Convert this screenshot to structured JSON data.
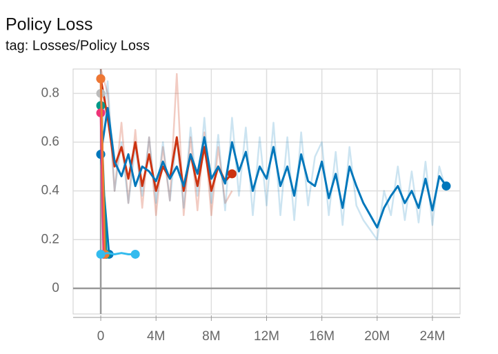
{
  "chart_data": {
    "type": "line",
    "title": "Policy Loss",
    "subtitle": "tag: Losses/Policy Loss",
    "xlim": [
      -2000000,
      26000000
    ],
    "xticks": [
      {
        "value": 0,
        "label": "0"
      },
      {
        "value": 4000000,
        "label": "4M"
      },
      {
        "value": 8000000,
        "label": "8M"
      },
      {
        "value": 12000000,
        "label": "12M"
      },
      {
        "value": 16000000,
        "label": "16M"
      },
      {
        "value": 20000000,
        "label": "20M"
      },
      {
        "value": 24000000,
        "label": "24M"
      }
    ],
    "ylim": [
      -0.105,
      0.9
    ],
    "yticks": [
      0,
      0.2,
      0.4,
      0.6,
      0.8
    ],
    "grid": true,
    "series": [
      {
        "color": "#cc3311",
        "opacity": 0.25,
        "x": [
          0,
          500000,
          1000000,
          1500000,
          2000000,
          2500000,
          3000000,
          3500000,
          4000000,
          4500000,
          5000000,
          5500000,
          6000000,
          6500000,
          7000000,
          7500000,
          8000000,
          8500000,
          9000000,
          9500000
        ],
        "values": [
          0.9,
          0.8,
          0.4,
          0.68,
          0.35,
          0.65,
          0.33,
          0.62,
          0.3,
          0.58,
          0.36,
          0.88,
          0.3,
          0.62,
          0.32,
          0.64,
          0.3,
          0.58,
          0.35,
          0.4
        ]
      },
      {
        "color": "#0077bb",
        "opacity": 0.2,
        "x": [
          0,
          500000,
          1000000,
          1500000,
          2000000,
          2500000,
          3000000,
          3500000,
          4000000,
          4500000,
          5000000,
          5500000,
          6000000,
          6500000,
          7000000,
          7500000,
          8000000,
          8500000,
          9000000,
          9500000,
          10000000,
          10500000,
          11000000,
          11500000,
          12000000,
          12500000,
          13000000,
          13500000,
          14000000,
          14500000,
          15000000,
          15500000,
          16000000,
          16500000,
          17000000,
          17500000,
          18000000,
          18500000,
          19000000,
          19500000,
          20000000,
          20500000,
          21000000,
          21500000,
          22000000,
          22500000,
          23000000,
          23500000,
          24000000,
          24500000,
          25000000
        ],
        "values": [
          0.6,
          0.85,
          0.4,
          0.6,
          0.35,
          0.58,
          0.38,
          0.62,
          0.35,
          0.6,
          0.36,
          0.62,
          0.33,
          0.66,
          0.38,
          0.7,
          0.35,
          0.63,
          0.32,
          0.7,
          0.38,
          0.66,
          0.3,
          0.62,
          0.34,
          0.68,
          0.3,
          0.62,
          0.28,
          0.64,
          0.34,
          0.54,
          0.6,
          0.3,
          0.56,
          0.26,
          0.58,
          0.34,
          0.28,
          0.24,
          0.2,
          0.4,
          0.3,
          0.5,
          0.28,
          0.48,
          0.27,
          0.52,
          0.26,
          0.5,
          0.4
        ]
      },
      {
        "color": "#cc3311",
        "opacity": 1,
        "x": [
          0,
          500000,
          1000000,
          1500000,
          2000000,
          2500000,
          3000000,
          3500000,
          4000000,
          4500000,
          5000000,
          5500000,
          6000000,
          6500000,
          7000000,
          7500000,
          8000000,
          8500000,
          9000000,
          9500000
        ],
        "values": [
          0.86,
          0.7,
          0.5,
          0.58,
          0.45,
          0.6,
          0.42,
          0.55,
          0.4,
          0.5,
          0.45,
          0.62,
          0.4,
          0.55,
          0.42,
          0.58,
          0.4,
          0.5,
          0.44,
          0.47
        ]
      },
      {
        "color": "#0077bb",
        "opacity": 1,
        "x": [
          0,
          500000,
          1000000,
          1500000,
          2000000,
          2500000,
          3000000,
          3500000,
          4000000,
          4500000,
          5000000,
          5500000,
          6000000,
          6500000,
          7000000,
          7500000,
          8000000,
          8500000,
          9000000,
          9500000,
          10000000,
          10500000,
          11000000,
          11500000,
          12000000,
          12500000,
          13000000,
          13500000,
          14000000,
          14500000,
          15000000,
          15500000,
          16000000,
          16500000,
          17000000,
          17500000,
          18000000,
          18500000,
          19000000,
          19500000,
          20000000,
          20500000,
          21000000,
          21500000,
          22000000,
          22500000,
          23000000,
          23500000,
          24000000,
          24500000,
          25000000
        ],
        "values": [
          0.55,
          0.74,
          0.52,
          0.46,
          0.55,
          0.42,
          0.5,
          0.48,
          0.44,
          0.52,
          0.45,
          0.5,
          0.42,
          0.55,
          0.47,
          0.62,
          0.45,
          0.5,
          0.43,
          0.6,
          0.48,
          0.56,
          0.4,
          0.5,
          0.45,
          0.58,
          0.42,
          0.5,
          0.38,
          0.55,
          0.44,
          0.42,
          0.52,
          0.37,
          0.47,
          0.33,
          0.5,
          0.42,
          0.35,
          0.3,
          0.25,
          0.33,
          0.38,
          0.42,
          0.35,
          0.4,
          0.33,
          0.45,
          0.32,
          0.46,
          0.42
        ]
      },
      {
        "color": "#0077bb",
        "opacity": 1,
        "x": [
          0,
          600000
        ],
        "values": [
          0.55,
          0.14
        ]
      },
      {
        "color": "#bbbbbb",
        "opacity": 1,
        "x": [
          0,
          300000
        ],
        "values": [
          0.8,
          0.14
        ]
      },
      {
        "color": "#009988",
        "opacity": 1,
        "x": [
          0,
          400000
        ],
        "values": [
          0.75,
          0.14
        ]
      },
      {
        "color": "#ee3377",
        "opacity": 1,
        "x": [
          0,
          200000
        ],
        "values": [
          0.72,
          0.14
        ]
      },
      {
        "color": "#ee7733",
        "opacity": 1,
        "x": [
          0,
          300000
        ],
        "values": [
          0.86,
          0.14
        ]
      },
      {
        "color": "#33bbee",
        "opacity": 1,
        "x": [
          0,
          500000,
          1000000,
          1500000,
          2000000,
          2500000
        ],
        "values": [
          0.14,
          0.145,
          0.14,
          0.145,
          0.14,
          0.14
        ]
      }
    ]
  }
}
